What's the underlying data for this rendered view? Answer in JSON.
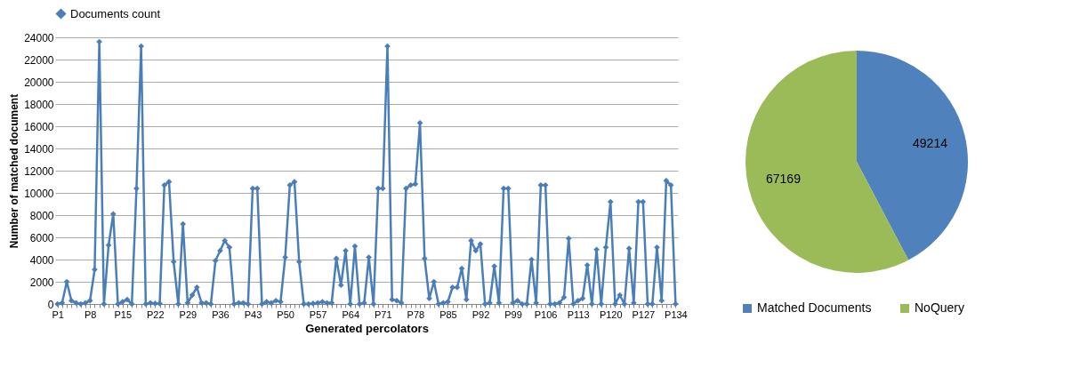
{
  "chart_data": [
    {
      "type": "line",
      "xlabel": "Generated percolators",
      "ylabel": "Number of matched document",
      "categories": [
        "P1",
        null,
        null,
        null,
        null,
        null,
        null,
        "P8",
        null,
        null,
        null,
        null,
        null,
        null,
        "P15",
        null,
        null,
        null,
        null,
        null,
        null,
        "P22",
        null,
        null,
        null,
        null,
        null,
        null,
        "P29",
        null,
        null,
        null,
        null,
        null,
        null,
        "P36",
        null,
        null,
        null,
        null,
        null,
        null,
        "P43",
        null,
        null,
        null,
        null,
        null,
        null,
        "P50",
        null,
        null,
        null,
        null,
        null,
        null,
        "P57",
        null,
        null,
        null,
        null,
        null,
        null,
        "P64",
        null,
        null,
        null,
        null,
        null,
        null,
        "P71",
        null,
        null,
        null,
        null,
        null,
        null,
        "P78",
        null,
        null,
        null,
        null,
        null,
        null,
        "P85",
        null,
        null,
        null,
        null,
        null,
        null,
        "P92",
        null,
        null,
        null,
        null,
        null,
        null,
        "P99",
        null,
        null,
        null,
        null,
        null,
        null,
        "P106",
        null,
        null,
        null,
        null,
        null,
        null,
        "P113",
        null,
        null,
        null,
        null,
        null,
        null,
        "P120",
        null,
        null,
        null,
        null,
        null,
        null,
        "P127",
        null,
        null,
        null,
        null,
        null,
        null,
        "P134"
      ],
      "series": [
        {
          "name": "Documents count",
          "color": "#4a7ebb",
          "values": [
            0,
            100,
            2000,
            300,
            100,
            0,
            100,
            300,
            3100,
            23600,
            0,
            5300,
            8100,
            0,
            200,
            400,
            0,
            10400,
            23200,
            0,
            100,
            50,
            50,
            10700,
            11000,
            3800,
            0,
            7200,
            100,
            800,
            1500,
            100,
            100,
            0,
            3900,
            4800,
            5700,
            5100,
            0,
            100,
            100,
            0,
            10400,
            10400,
            0,
            200,
            100,
            300,
            200,
            4200,
            10700,
            11000,
            3800,
            0,
            0,
            50,
            100,
            200,
            100,
            100,
            4100,
            1700,
            4800,
            0,
            5200,
            0,
            100,
            4200,
            0,
            10400,
            10400,
            23200,
            400,
            300,
            100,
            10400,
            10700,
            10800,
            16300,
            4100,
            500,
            2000,
            0,
            100,
            200,
            1500,
            1500,
            3200,
            400,
            5700,
            4800,
            5400,
            0,
            100,
            3400,
            100,
            10400,
            10400,
            100,
            300,
            0,
            0,
            4000,
            100,
            10700,
            10700,
            0,
            0,
            100,
            600,
            5900,
            0,
            300,
            500,
            3500,
            0,
            4900,
            0,
            5100,
            9200,
            0,
            800,
            0,
            5000,
            100,
            9200,
            9200,
            0,
            0,
            5100,
            300,
            11100,
            10700,
            0
          ]
        }
      ],
      "ylim": [
        0,
        24000
      ],
      "yticks": [
        0,
        2000,
        4000,
        6000,
        8000,
        10000,
        12000,
        14000,
        16000,
        18000,
        20000,
        22000,
        24000
      ],
      "grid": "y",
      "legend": "top",
      "marker": "diamond"
    },
    {
      "type": "pie",
      "categories": [
        "Matched Documents",
        "NoQuery"
      ],
      "values": [
        49214,
        67169
      ],
      "colors": [
        "#4f81bd",
        "#9bbb59"
      ],
      "data_labels": true,
      "legend": "bottom"
    }
  ]
}
